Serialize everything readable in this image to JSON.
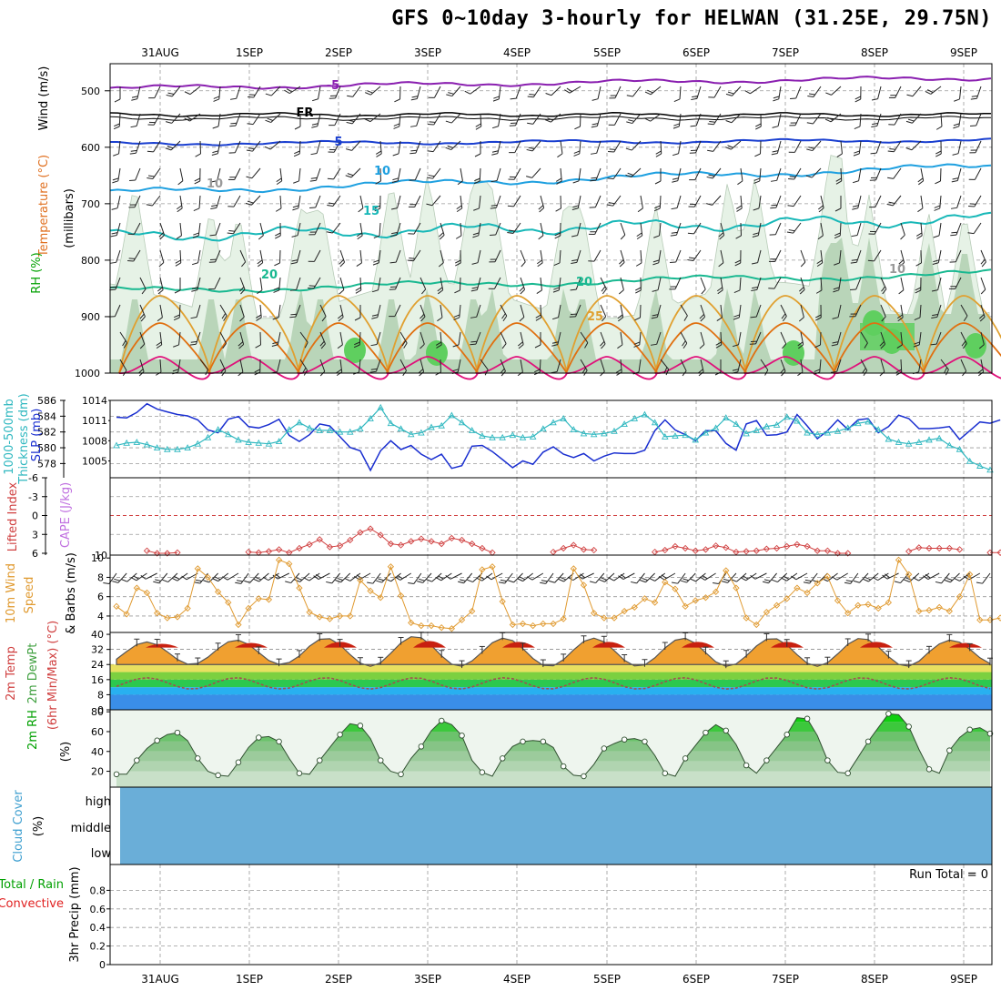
{
  "title": "GFS 0~10day 3-hourly for HELWAN (31.25E, 29.75N)",
  "colors": {
    "rh_light": "#e6f2e6",
    "rh_mid": "#b4d2b4",
    "rh_dark": "#7fa57f",
    "rh_green": "#5fcf5f",
    "t_m5": "#8a1fb0",
    "t_fr": "#000000",
    "t_5": "#1a3fd0",
    "t_10": "#1ea0e0",
    "t_15": "#18b8b8",
    "t_20": "#18b890",
    "t_25": "#e0a030",
    "t_30": "#e07010",
    "t_35": "#e0107a",
    "slp": "#1a2fd0",
    "thk": "#30b8c0",
    "li": "#d04040",
    "wind10": "#e09a30",
    "cloud": "#6aaed8",
    "grid": "#9a9a9a"
  },
  "chart_data": {
    "type": "line",
    "x": [
      "31AUG",
      "1SEP",
      "2SEP",
      "3SEP",
      "4SEP",
      "5SEP",
      "6SEP",
      "7SEP",
      "8SEP",
      "9SEP"
    ],
    "panels": [
      {
        "id": "upper-air",
        "ylabel_parts": [
          {
            "text": "Wind (m/s)",
            "color": "#000000"
          },
          {
            "text": "Temperature (°C)",
            "color": "#e07020"
          },
          {
            "text": "RH (%)",
            "color": "#00a000"
          },
          {
            "text": "(millibars)",
            "color": "#000000"
          }
        ],
        "yticks": [
          "500",
          "600",
          "700",
          "800",
          "900",
          "1000"
        ],
        "contour_labels": [
          "-5",
          "FR",
          "5",
          "10",
          "15",
          "20",
          "25",
          "10",
          "20",
          "10"
        ]
      },
      {
        "id": "slp-thickness",
        "ylabel_parts": [
          {
            "text": "1000-500mb",
            "color": "#30b8c0"
          },
          {
            "text": "Thickness (dm)",
            "color": "#30b8c0"
          },
          {
            "text": "SLP (mb)",
            "color": "#1a2fd0"
          }
        ],
        "left_ticks": [
          "586",
          "584",
          "582",
          "580",
          "578"
        ],
        "right_ticks": [
          "1014",
          "1011",
          "1008",
          "1005"
        ],
        "thickness_dm": [
          580.3,
          580.6,
          580.7,
          580.4,
          580.0,
          579.8,
          579.8,
          580.0,
          580.5,
          581.3,
          582.3,
          581.7,
          581.0,
          580.7,
          580.6,
          580.5,
          580.8,
          582.3,
          583.2,
          582.5,
          582.2,
          582.2,
          582.0,
          582.0,
          582.4,
          583.7,
          585.1,
          583.1,
          582.4,
          581.7,
          581.9,
          582.6,
          582.8,
          584.1,
          583.2,
          582.2,
          581.5,
          581.3,
          581.3,
          581.6,
          581.3,
          581.4,
          582.4,
          583.2,
          583.7,
          582.3,
          581.8,
          581.7,
          581.8,
          582.1,
          583.0,
          583.7,
          584.2,
          583.2,
          581.4,
          581.5,
          581.6,
          581.0,
          581.9,
          582.5,
          583.8,
          583.0,
          581.8,
          582.2,
          582.7,
          582.9,
          583.9,
          583.4,
          581.9,
          581.7,
          581.9,
          582.1,
          582.5,
          583.1,
          583.3,
          582.3,
          581.1,
          580.7,
          580.5,
          580.7,
          581.0,
          581.2,
          580.3,
          579.8,
          578.3,
          577.7,
          577.2
        ],
        "slp_mb": [
          1011.5,
          1011.4,
          1012.2,
          1013.5,
          1012.7,
          1012.3,
          1011.9,
          1011.7,
          1011.1,
          1009.6,
          1009.2,
          1011.2,
          1011.6,
          1010.1,
          1009.9,
          1010.4,
          1011.2,
          1008.8,
          1007.9,
          1008.9,
          1010.5,
          1010.2,
          1008.6,
          1007.0,
          1006.5,
          1003.6,
          1006.5,
          1008.0,
          1006.7,
          1007.3,
          1006.0,
          1005.2,
          1006.0,
          1003.9,
          1004.3,
          1007.2,
          1007.3,
          1006.4,
          1005.2,
          1004.0,
          1005.0,
          1004.5,
          1006.3,
          1007.1,
          1006.0,
          1005.5,
          1006.1,
          1005.0,
          1005.7,
          1006.2,
          1006.1,
          1006.1,
          1006.6,
          1009.5,
          1011.1,
          1009.6,
          1008.9,
          1008.0,
          1009.5,
          1009.5,
          1007.6,
          1006.6,
          1010.5,
          1011.0,
          1008.8,
          1008.9,
          1009.3,
          1011.9,
          1010.2,
          1008.3,
          1009.5,
          1011.1,
          1009.7,
          1011.1,
          1011.3,
          1009.2,
          1010.1,
          1011.8,
          1011.3,
          1009.8,
          1009.8,
          1009.9,
          1010.1,
          1008.2,
          1009.5,
          1010.8,
          1010.6,
          1011.1
        ]
      },
      {
        "id": "stability",
        "ylabel_parts": [
          {
            "text": "CAPE (J/kg)",
            "color": "#c070e0"
          },
          {
            "text": "Lifted Index",
            "color": "#d04040"
          }
        ],
        "left_ticks": [
          "-6",
          "-3",
          "0",
          "3",
          "6"
        ],
        "right_ticks": [
          "10"
        ],
        "lifted_index": [
          null,
          null,
          null,
          5.6,
          6.0,
          6.0,
          5.9,
          null,
          null,
          null,
          null,
          null,
          null,
          5.8,
          5.9,
          5.7,
          5.4,
          5.9,
          5.2,
          4.6,
          3.8,
          5.0,
          4.8,
          3.9,
          2.7,
          2.1,
          3.1,
          4.5,
          4.7,
          4.1,
          3.7,
          4.1,
          4.5,
          3.6,
          3.9,
          4.5,
          5.2,
          5.9,
          null,
          null,
          null,
          null,
          null,
          5.8,
          5.2,
          4.7,
          5.4,
          5.5,
          null,
          null,
          null,
          null,
          null,
          5.8,
          5.5,
          4.9,
          5.2,
          5.6,
          5.4,
          4.8,
          5.1,
          5.8,
          5.7,
          5.6,
          5.3,
          5.2,
          4.9,
          4.6,
          4.9,
          5.6,
          5.6,
          6.0,
          6.0,
          null,
          null,
          null,
          null,
          null,
          5.7,
          5.1,
          5.2,
          5.2,
          5.2,
          5.4,
          null,
          null,
          5.9,
          5.9
        ]
      },
      {
        "id": "wind10m",
        "ylabel_parts": [
          {
            "text": "10m Wind",
            "color": "#e09a30"
          },
          {
            "text": "Speed",
            "color": "#e09a30"
          },
          {
            "text": "& Barbs (m/s)",
            "color": "#000000"
          }
        ],
        "left_ticks": [
          "10",
          "8",
          "6",
          "4"
        ],
        "wind_speed_ms": [
          5.0,
          4.2,
          6.9,
          6.4,
          4.3,
          3.8,
          3.9,
          4.8,
          8.9,
          8.0,
          6.5,
          5.4,
          3.1,
          4.8,
          5.8,
          5.7,
          9.8,
          9.4,
          6.9,
          4.4,
          3.9,
          3.7,
          4.0,
          4.0,
          7.7,
          6.6,
          5.9,
          9.1,
          6.1,
          3.3,
          3.0,
          3.0,
          2.8,
          2.7,
          3.6,
          4.5,
          8.8,
          9.1,
          5.5,
          3.1,
          3.2,
          3.0,
          3.2,
          3.2,
          3.7,
          8.9,
          7.2,
          4.3,
          3.8,
          3.8,
          4.5,
          4.9,
          5.8,
          5.4,
          7.5,
          6.8,
          5.0,
          5.6,
          5.9,
          6.5,
          8.7,
          6.9,
          3.8,
          3.1,
          4.4,
          5.1,
          5.8,
          6.9,
          6.4,
          7.4,
          8.1,
          5.6,
          4.3,
          5.1,
          5.2,
          4.8,
          5.4,
          9.8,
          8.3,
          4.5,
          4.6,
          4.9,
          4.5,
          6.0,
          8.3,
          3.6,
          3.6,
          3.8
        ]
      },
      {
        "id": "temperature2m",
        "ylabel_parts": [
          {
            "text": "2m Temp",
            "color": "#d04040"
          },
          {
            "text": "2m DewPt",
            "color": "#40a040"
          },
          {
            "text": "(6hr Min/Max) (°C)",
            "color": "#d04040"
          }
        ],
        "left_ticks": [
          "40",
          "32",
          "24",
          "16",
          "8",
          "0"
        ],
        "daily_max_temp": [
          36,
          37,
          38,
          39,
          38,
          38,
          38,
          38,
          38,
          37
        ],
        "daily_min_temp": [
          24,
          24,
          23,
          23,
          23,
          23,
          23,
          23,
          23,
          24
        ],
        "dewpoint_range": [
          11,
          17
        ]
      },
      {
        "id": "rh2m",
        "ylabel_parts": [
          {
            "text": "2m RH",
            "color": "#00a000"
          },
          {
            "text": "(%)",
            "color": "#000000"
          }
        ],
        "left_ticks": [
          "80",
          "60",
          "40",
          "20"
        ],
        "rh_values": [
          17,
          17,
          31,
          43,
          51,
          57,
          59,
          51,
          33,
          20,
          16,
          15,
          29,
          44,
          54,
          55,
          50,
          33,
          18,
          17,
          31,
          44,
          57,
          68,
          66,
          53,
          31,
          20,
          17,
          33,
          45,
          61,
          71,
          67,
          56,
          31,
          19,
          15,
          33,
          45,
          50,
          51,
          50,
          44,
          25,
          16,
          15,
          27,
          43,
          48,
          52,
          53,
          50,
          36,
          18,
          15,
          33,
          46,
          59,
          67,
          61,
          47,
          26,
          18,
          31,
          44,
          57,
          74,
          73,
          56,
          31,
          19,
          18,
          34,
          50,
          64,
          78,
          77,
          65,
          42,
          22,
          18,
          41,
          54,
          62,
          64,
          58
        ]
      },
      {
        "id": "cloud-cover",
        "ylabel_parts": [
          {
            "text": "Cloud Cover",
            "color": "#40a0d0"
          },
          {
            "text": "(%)",
            "color": "#000000"
          }
        ],
        "levels": [
          "high",
          "middle",
          "low"
        ]
      },
      {
        "id": "precip",
        "ylabel_parts": [
          {
            "text": "Total / Rain",
            "color": "#00a000"
          },
          {
            "text": "Convective",
            "color": "#e02020"
          },
          {
            "text": "3hr Precip (mm)",
            "color": "#000000"
          }
        ],
        "left_ticks": [
          "0.8",
          "0.6",
          "0.4",
          "0.2",
          "0"
        ],
        "run_total_text": "Run Total = 0",
        "values": [
          0
        ]
      }
    ]
  }
}
